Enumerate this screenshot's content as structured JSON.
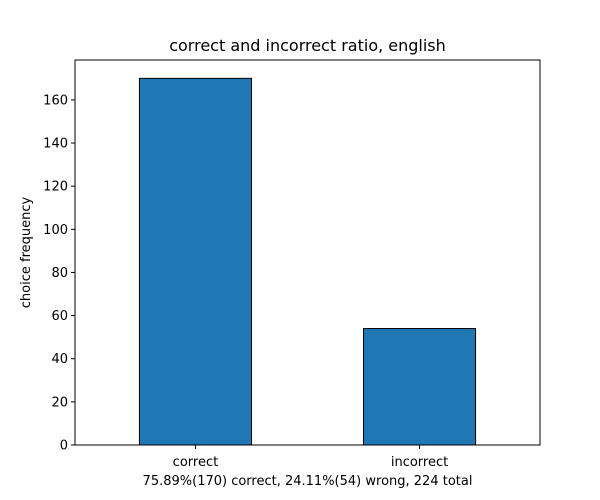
{
  "chart_data": {
    "type": "bar",
    "title": "correct and incorrect ratio, english",
    "xlabel": "75.89%(170) correct, 24.11%(54) wrong, 224 total",
    "ylabel": "choice frequency",
    "categories": [
      "correct",
      "incorrect"
    ],
    "values": [
      170,
      54
    ],
    "ylim": [
      0,
      178.5
    ],
    "yticks": [
      0,
      20,
      40,
      60,
      80,
      100,
      120,
      140,
      160
    ],
    "grid": false,
    "bar_color": "#1f77b4",
    "edge_color": "#000000"
  }
}
